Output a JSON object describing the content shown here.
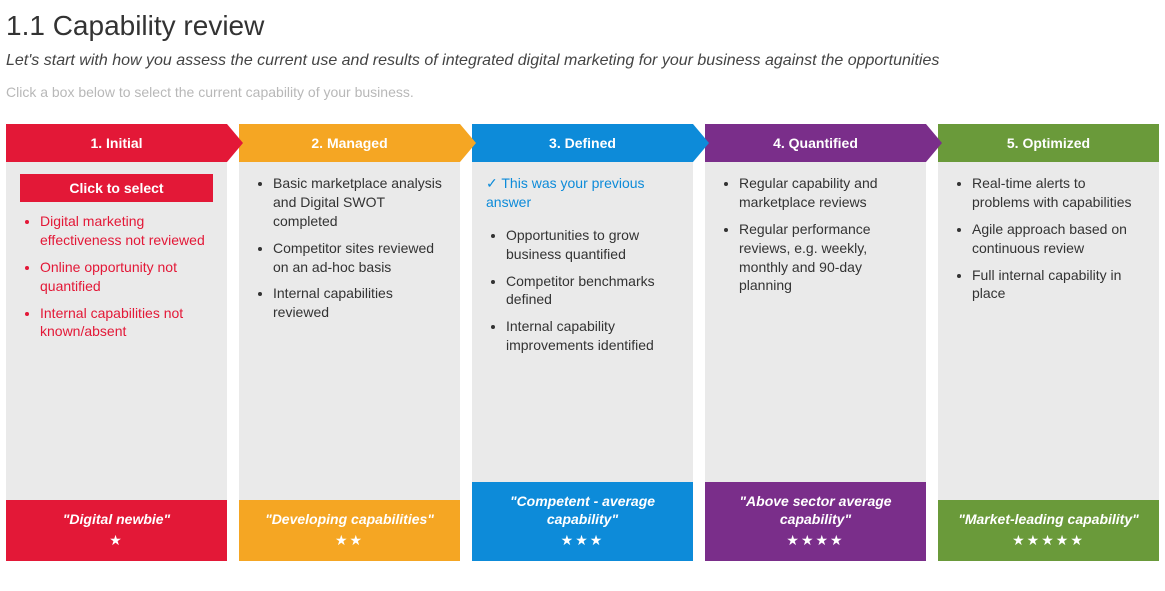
{
  "title": "1.1 Capability review",
  "subtitle": "Let's start with how you assess the current use and results of integrated digital marketing for your business against the opportunities",
  "instruction": "Click a box below to select the current capability of your business.",
  "colors": {
    "initial": "#e31837",
    "managed": "#f5a623",
    "defined": "#0d8bd9",
    "quantified": "#7a2e8a",
    "optimized": "#6a9a3a",
    "body_bg": "#eaeaea",
    "muted_text": "#b8b8b8",
    "link_blue": "#0d8bd9"
  },
  "columns": [
    {
      "id": "initial",
      "header": "1. Initial",
      "has_arrow": true,
      "click_to_select": "Click to select",
      "red_bullets": true,
      "previous_answer": null,
      "bullets": [
        "Digital marketing effectiveness not reviewed",
        "Online opportunity not quantified",
        "Internal capabilities not known/absent"
      ],
      "footer_caption": "\"Digital newbie\"",
      "stars": 1
    },
    {
      "id": "managed",
      "header": "2. Managed",
      "has_arrow": true,
      "click_to_select": null,
      "red_bullets": false,
      "previous_answer": null,
      "bullets": [
        "Basic marketplace analysis and Digital SWOT completed",
        "Competitor sites reviewed on an ad-hoc basis",
        "Internal capabilities reviewed"
      ],
      "footer_caption": "\"Developing capabilities\"",
      "stars": 2
    },
    {
      "id": "defined",
      "header": "3. Defined",
      "has_arrow": true,
      "click_to_select": null,
      "red_bullets": false,
      "previous_answer": "✓ This was your previous answer",
      "bullets": [
        "Opportunities to grow business quantified",
        "Competitor benchmarks defined",
        "Internal capability improvements identified"
      ],
      "footer_caption": "\"Competent - average capability\"",
      "stars": 3
    },
    {
      "id": "quantified",
      "header": "4. Quantified",
      "has_arrow": true,
      "click_to_select": null,
      "red_bullets": false,
      "previous_answer": null,
      "bullets": [
        "Regular capability and marketplace reviews",
        "Regular performance reviews, e.g. weekly, monthly and 90-day planning"
      ],
      "footer_caption": "\"Above sector average capability\"",
      "stars": 4
    },
    {
      "id": "optimized",
      "header": "5. Optimized",
      "has_arrow": false,
      "click_to_select": null,
      "red_bullets": false,
      "previous_answer": null,
      "bullets": [
        "Real-time alerts to problems with capabilities",
        "Agile approach based on continuous review",
        "Full internal capability in place"
      ],
      "footer_caption": "\"Market-leading capability\"",
      "stars": 5
    }
  ]
}
